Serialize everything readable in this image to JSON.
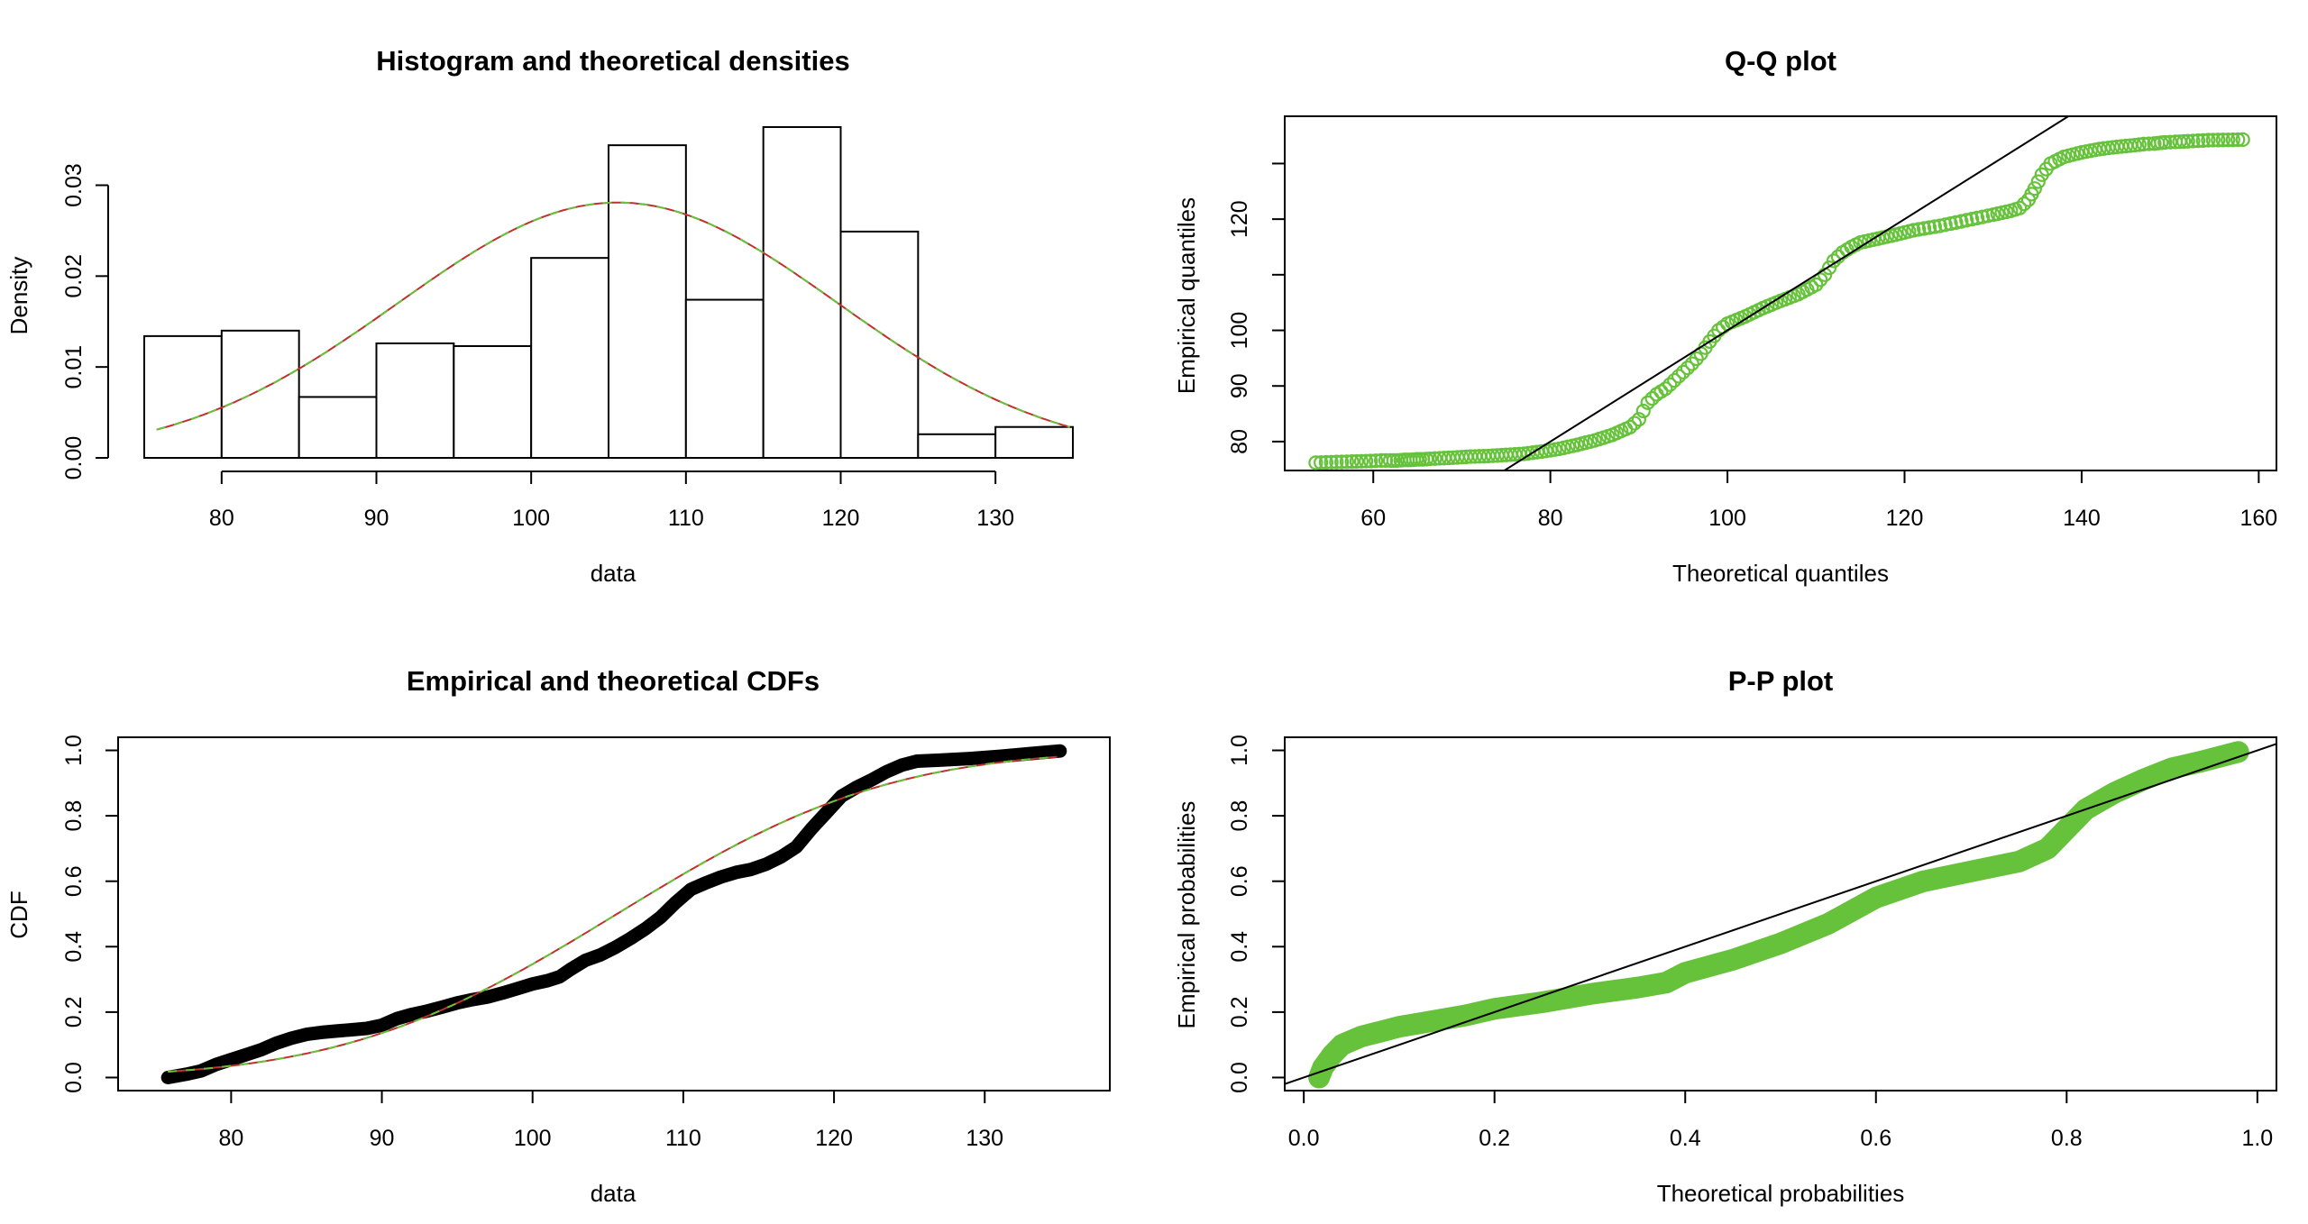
{
  "colors": {
    "empirical": "#66c23b",
    "normal_fit": "#c03030",
    "normal_fit_2": "#66c23b",
    "ecdf": "#000000",
    "reference_line": "#000000"
  },
  "chart_data": [
    {
      "id": "histogram",
      "type": "bar",
      "title": "Histogram and theoretical densities",
      "xlabel": "data",
      "ylabel": "Density",
      "xlim": [
        75,
        135
      ],
      "ylim": [
        0,
        0.036
      ],
      "xticks": [
        80,
        90,
        100,
        110,
        120,
        130
      ],
      "yticks": [
        0.0,
        0.01,
        0.02,
        0.03
      ],
      "ytick_labels": [
        "0.00",
        "0.01",
        "0.02",
        "0.03"
      ],
      "bins": [
        {
          "x0": 75,
          "x1": 80,
          "density": 0.0134
        },
        {
          "x0": 80,
          "x1": 85,
          "density": 0.014
        },
        {
          "x0": 85,
          "x1": 90,
          "density": 0.0067
        },
        {
          "x0": 90,
          "x1": 95,
          "density": 0.0126
        },
        {
          "x0": 95,
          "x1": 100,
          "density": 0.0123
        },
        {
          "x0": 100,
          "x1": 105,
          "density": 0.022
        },
        {
          "x0": 105,
          "x1": 110,
          "density": 0.0344
        },
        {
          "x0": 110,
          "x1": 115,
          "density": 0.0174
        },
        {
          "x0": 115,
          "x1": 120,
          "density": 0.0364
        },
        {
          "x0": 120,
          "x1": 125,
          "density": 0.0249
        },
        {
          "x0": 125,
          "x1": 130,
          "density": 0.0026
        },
        {
          "x0": 130,
          "x1": 135,
          "density": 0.0034
        }
      ],
      "fit": {
        "distribution": "normal",
        "mean": 105.6,
        "sd": 14.2,
        "x_range": [
          75.8,
          135
        ]
      }
    },
    {
      "id": "qq",
      "type": "scatter",
      "title": "Q-Q plot",
      "xlabel": "Theoretical quantiles",
      "ylabel": "Empirical quantiles",
      "xlim": [
        50,
        162
      ],
      "ylim": [
        74.8,
        138.5
      ],
      "xticks": [
        60,
        80,
        100,
        120,
        140,
        160
      ],
      "yticks": [
        80,
        90,
        100,
        110,
        120,
        130
      ],
      "ytick_labels": [
        "80",
        "90",
        "100",
        "",
        "120",
        ""
      ],
      "reference_line": "y = x",
      "sample_points": [
        [
          53.5,
          76.2
        ],
        [
          57.6,
          76.4
        ],
        [
          59.7,
          76.5
        ],
        [
          60.9,
          76.6
        ],
        [
          61.9,
          76.6
        ],
        [
          62.7,
          76.6
        ],
        [
          63.5,
          76.7
        ],
        [
          64.2,
          76.7
        ],
        [
          64.9,
          76.8
        ],
        [
          65.6,
          76.8
        ],
        [
          66.4,
          76.9
        ],
        [
          67.5,
          77.0
        ],
        [
          69.0,
          77.1
        ],
        [
          71.0,
          77.3
        ],
        [
          73.0,
          77.4
        ],
        [
          75.0,
          77.6
        ],
        [
          77.0,
          77.8
        ],
        [
          79.0,
          78.2
        ],
        [
          81.0,
          78.7
        ],
        [
          83.0,
          79.4
        ],
        [
          85.0,
          80.2
        ],
        [
          87.0,
          81.2
        ],
        [
          89.0,
          82.6
        ],
        [
          90.0,
          84.0
        ],
        [
          91.0,
          87.0
        ],
        [
          92.0,
          88.5
        ],
        [
          93.0,
          89.5
        ],
        [
          94.0,
          91.0
        ],
        [
          95.0,
          92.5
        ],
        [
          96.0,
          94.0
        ],
        [
          97.0,
          95.8
        ],
        [
          98.0,
          98.0
        ],
        [
          99.0,
          100.0
        ],
        [
          100.0,
          101.2
        ],
        [
          102.0,
          102.5
        ],
        [
          104.0,
          104.0
        ],
        [
          106.0,
          105.3
        ],
        [
          108.0,
          106.5
        ],
        [
          110.0,
          108.2
        ],
        [
          111.0,
          110.0
        ],
        [
          112.0,
          112.5
        ],
        [
          113.0,
          114.0
        ],
        [
          114.0,
          115.0
        ],
        [
          115.0,
          115.8
        ],
        [
          117.0,
          116.5
        ],
        [
          119.0,
          117.2
        ],
        [
          121.0,
          118.0
        ],
        [
          124.0,
          118.8
        ],
        [
          127.0,
          119.8
        ],
        [
          130.0,
          120.8
        ],
        [
          132.0,
          121.5
        ],
        [
          133.0,
          122.0
        ],
        [
          134.0,
          123.5
        ],
        [
          134.7,
          125.5
        ],
        [
          135.5,
          128.0
        ],
        [
          136.5,
          130.0
        ],
        [
          138.0,
          131.2
        ],
        [
          140.0,
          132.0
        ],
        [
          142.0,
          132.6
        ],
        [
          144.0,
          133.0
        ],
        [
          146.0,
          133.3
        ],
        [
          147.0,
          133.5
        ],
        [
          148.2,
          133.6
        ],
        [
          149.4,
          133.8
        ],
        [
          150.6,
          133.9
        ],
        [
          152.0,
          134.0
        ],
        [
          154.3,
          134.2
        ],
        [
          158.2,
          134.3
        ]
      ]
    },
    {
      "id": "cdf",
      "type": "line",
      "title": "Empirical and theoretical CDFs",
      "xlabel": "data",
      "ylabel": "CDF",
      "xlim": [
        72.5,
        138.3
      ],
      "ylim": [
        -0.04,
        1.04
      ],
      "xticks": [
        80,
        90,
        100,
        110,
        120,
        130
      ],
      "yticks": [
        0.0,
        0.2,
        0.4,
        0.6,
        0.8,
        1.0
      ],
      "ytick_labels": [
        "0.0",
        "0.2",
        "0.4",
        "0.6",
        "0.8",
        "1.0"
      ],
      "empirical": [
        [
          75.8,
          0.0
        ],
        [
          77.0,
          0.01
        ],
        [
          78.0,
          0.02
        ],
        [
          79.0,
          0.04
        ],
        [
          80.0,
          0.055
        ],
        [
          81.0,
          0.07
        ],
        [
          82.0,
          0.085
        ],
        [
          83.0,
          0.105
        ],
        [
          84.0,
          0.12
        ],
        [
          85.0,
          0.132
        ],
        [
          86.0,
          0.138
        ],
        [
          87.0,
          0.142
        ],
        [
          88.0,
          0.146
        ],
        [
          89.0,
          0.15
        ],
        [
          90.0,
          0.16
        ],
        [
          91.0,
          0.18
        ],
        [
          92.0,
          0.193
        ],
        [
          93.0,
          0.203
        ],
        [
          94.0,
          0.215
        ],
        [
          95.0,
          0.228
        ],
        [
          96.0,
          0.238
        ],
        [
          97.0,
          0.246
        ],
        [
          98.0,
          0.258
        ],
        [
          99.0,
          0.272
        ],
        [
          100.0,
          0.286
        ],
        [
          101.0,
          0.296
        ],
        [
          101.8,
          0.308
        ],
        [
          102.5,
          0.33
        ],
        [
          103.5,
          0.358
        ],
        [
          104.5,
          0.375
        ],
        [
          105.5,
          0.398
        ],
        [
          106.5,
          0.425
        ],
        [
          107.5,
          0.455
        ],
        [
          108.5,
          0.49
        ],
        [
          109.5,
          0.535
        ],
        [
          110.5,
          0.575
        ],
        [
          111.5,
          0.595
        ],
        [
          112.5,
          0.613
        ],
        [
          113.5,
          0.627
        ],
        [
          114.5,
          0.636
        ],
        [
          115.5,
          0.652
        ],
        [
          116.5,
          0.675
        ],
        [
          117.5,
          0.705
        ],
        [
          118.5,
          0.76
        ],
        [
          119.5,
          0.81
        ],
        [
          120.5,
          0.86
        ],
        [
          121.5,
          0.887
        ],
        [
          122.5,
          0.91
        ],
        [
          123.5,
          0.935
        ],
        [
          124.5,
          0.955
        ],
        [
          125.5,
          0.967
        ],
        [
          127.0,
          0.97
        ],
        [
          129.0,
          0.975
        ],
        [
          131.0,
          0.982
        ],
        [
          133.0,
          0.99
        ],
        [
          135.0,
          0.998
        ]
      ],
      "fit": {
        "distribution": "normal",
        "mean": 105.6,
        "sd": 14.2,
        "x_range": [
          75.8,
          135
        ]
      }
    },
    {
      "id": "pp",
      "type": "scatter",
      "title": "P-P plot",
      "xlabel": "Theoretical probabilities",
      "ylabel": "Empirical probabilities",
      "xlim": [
        -0.02,
        1.02
      ],
      "ylim": [
        -0.04,
        1.04
      ],
      "xticks": [
        0.0,
        0.2,
        0.4,
        0.6,
        0.8,
        1.0
      ],
      "xtick_labels": [
        "0.0",
        "0.2",
        "0.4",
        "0.6",
        "0.8",
        "1.0"
      ],
      "yticks": [
        0.0,
        0.2,
        0.4,
        0.6,
        0.8,
        1.0
      ],
      "ytick_labels": [
        "0.0",
        "0.2",
        "0.4",
        "0.6",
        "0.8",
        "1.0"
      ],
      "reference_line": "y = x",
      "sample_points": [
        [
          0.016,
          0.0
        ],
        [
          0.02,
          0.03
        ],
        [
          0.03,
          0.07
        ],
        [
          0.04,
          0.1
        ],
        [
          0.06,
          0.125
        ],
        [
          0.08,
          0.14
        ],
        [
          0.1,
          0.155
        ],
        [
          0.13,
          0.17
        ],
        [
          0.17,
          0.19
        ],
        [
          0.2,
          0.21
        ],
        [
          0.25,
          0.23
        ],
        [
          0.3,
          0.255
        ],
        [
          0.35,
          0.275
        ],
        [
          0.38,
          0.29
        ],
        [
          0.4,
          0.32
        ],
        [
          0.45,
          0.36
        ],
        [
          0.5,
          0.41
        ],
        [
          0.55,
          0.47
        ],
        [
          0.6,
          0.55
        ],
        [
          0.65,
          0.6
        ],
        [
          0.7,
          0.63
        ],
        [
          0.75,
          0.66
        ],
        [
          0.78,
          0.7
        ],
        [
          0.8,
          0.76
        ],
        [
          0.82,
          0.82
        ],
        [
          0.85,
          0.87
        ],
        [
          0.88,
          0.91
        ],
        [
          0.91,
          0.945
        ],
        [
          0.94,
          0.965
        ],
        [
          0.96,
          0.98
        ],
        [
          0.98,
          0.995
        ]
      ]
    }
  ]
}
